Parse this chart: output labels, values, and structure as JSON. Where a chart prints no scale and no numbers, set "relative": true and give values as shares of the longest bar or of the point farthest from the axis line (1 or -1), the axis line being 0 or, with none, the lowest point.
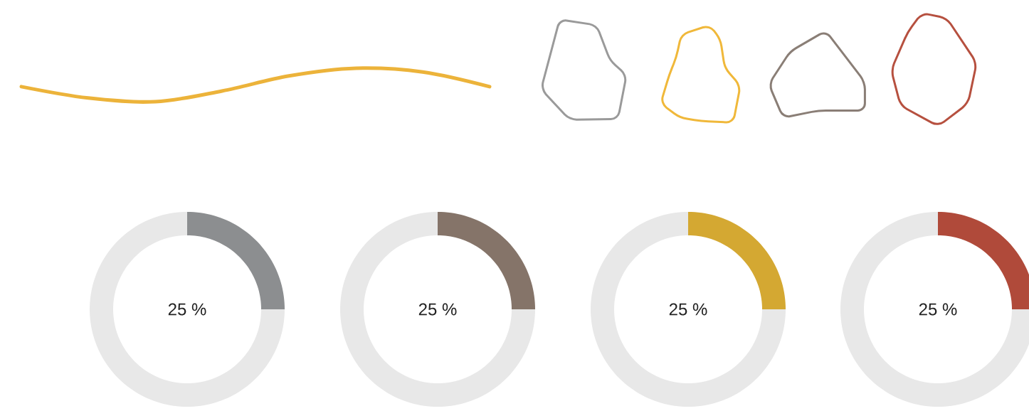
{
  "chart_data": [
    {
      "type": "line",
      "relative": true,
      "categories": [
        null,
        null,
        null,
        null,
        null,
        null,
        null,
        null
      ],
      "color": "#ecb33a",
      "values": [
        0.45,
        0.11,
        0,
        0.32,
        0.77,
        1,
        0.89,
        0.45
      ]
    },
    {
      "type": "donut",
      "categories": [
        null,
        null
      ],
      "values": [
        25,
        75
      ],
      "colors": [
        "#8c8e90",
        "#e8e8e8"
      ],
      "value_labels": [
        "25 %",
        null
      ]
    },
    {
      "type": "donut",
      "categories": [
        null,
        null
      ],
      "values": [
        25,
        75
      ],
      "colors": [
        "#857469",
        "#e8e8e8"
      ],
      "value_labels": [
        "25 %",
        null
      ]
    },
    {
      "type": "donut",
      "categories": [
        null,
        null
      ],
      "values": [
        25,
        75
      ],
      "colors": [
        "#d4a832",
        "#e8e8e8"
      ],
      "value_labels": [
        "25 %",
        null
      ]
    },
    {
      "type": "donut",
      "categories": [
        null,
        null
      ],
      "values": [
        25,
        75
      ],
      "colors": [
        "#b04a3a",
        "#e8e8e8"
      ],
      "value_labels": [
        "25 %",
        null
      ]
    }
  ]
}
